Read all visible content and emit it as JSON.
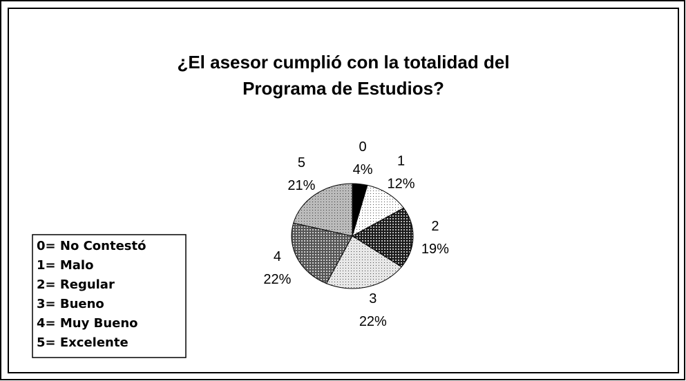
{
  "chart_data": {
    "type": "pie",
    "title_lines": [
      "¿El asesor cumplió con la totalidad del",
      "Programa de Estudios?"
    ],
    "categories": [
      "0",
      "1",
      "2",
      "3",
      "4",
      "5"
    ],
    "values": [
      4,
      12,
      19,
      22,
      22,
      21
    ],
    "value_labels": [
      "4%",
      "12%",
      "19%",
      "22%",
      "22%",
      "21%"
    ],
    "colors": [
      "#000000",
      "#ffffff",
      "#1a1a1a",
      "#e8e8e8",
      "#555555",
      "#bbbbbb"
    ],
    "legend_lines": [
      "0= No Contestó",
      "1= Malo",
      "2= Regular",
      "3= Bueno",
      "4= Muy Bueno",
      "5= Excelente"
    ]
  }
}
